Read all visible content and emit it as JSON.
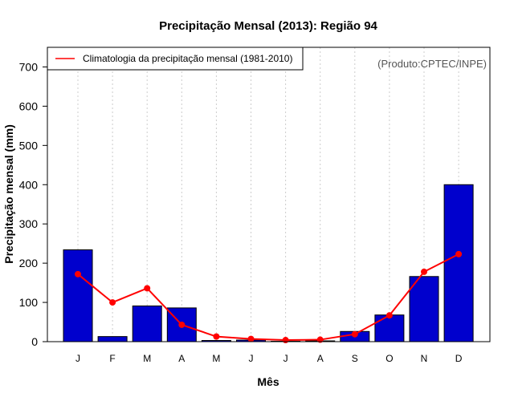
{
  "chart_data": {
    "type": "bar",
    "title": "Precipitação Mensal (2013): Região 94",
    "xlabel": "Mês",
    "ylabel": "Precipitação mensal (mm)",
    "ylim": [
      0,
      750
    ],
    "yticks": [
      0,
      100,
      200,
      300,
      400,
      500,
      600,
      700
    ],
    "categories": [
      "J",
      "F",
      "M",
      "A",
      "M",
      "J",
      "J",
      "A",
      "S",
      "O",
      "N",
      "D"
    ],
    "grid": "vertical dotted",
    "series": [
      {
        "name": "Precipitação mensal (2013)",
        "type": "bar",
        "color": "#0000cd",
        "values": [
          234,
          13,
          91,
          86,
          3,
          4,
          1,
          2,
          26,
          68,
          166,
          400
        ]
      },
      {
        "name": "Climatologia da precipitação mensal (1981-2010)",
        "type": "line",
        "color": "#ff0000",
        "values": [
          172,
          100,
          136,
          43,
          13,
          7,
          4,
          5,
          19,
          67,
          178,
          223
        ]
      }
    ],
    "legend": {
      "position": "top-left",
      "label": "Climatologia da precipitação mensal (1981-2010)"
    },
    "annotation": "(Produto:CPTEC/INPE)"
  }
}
